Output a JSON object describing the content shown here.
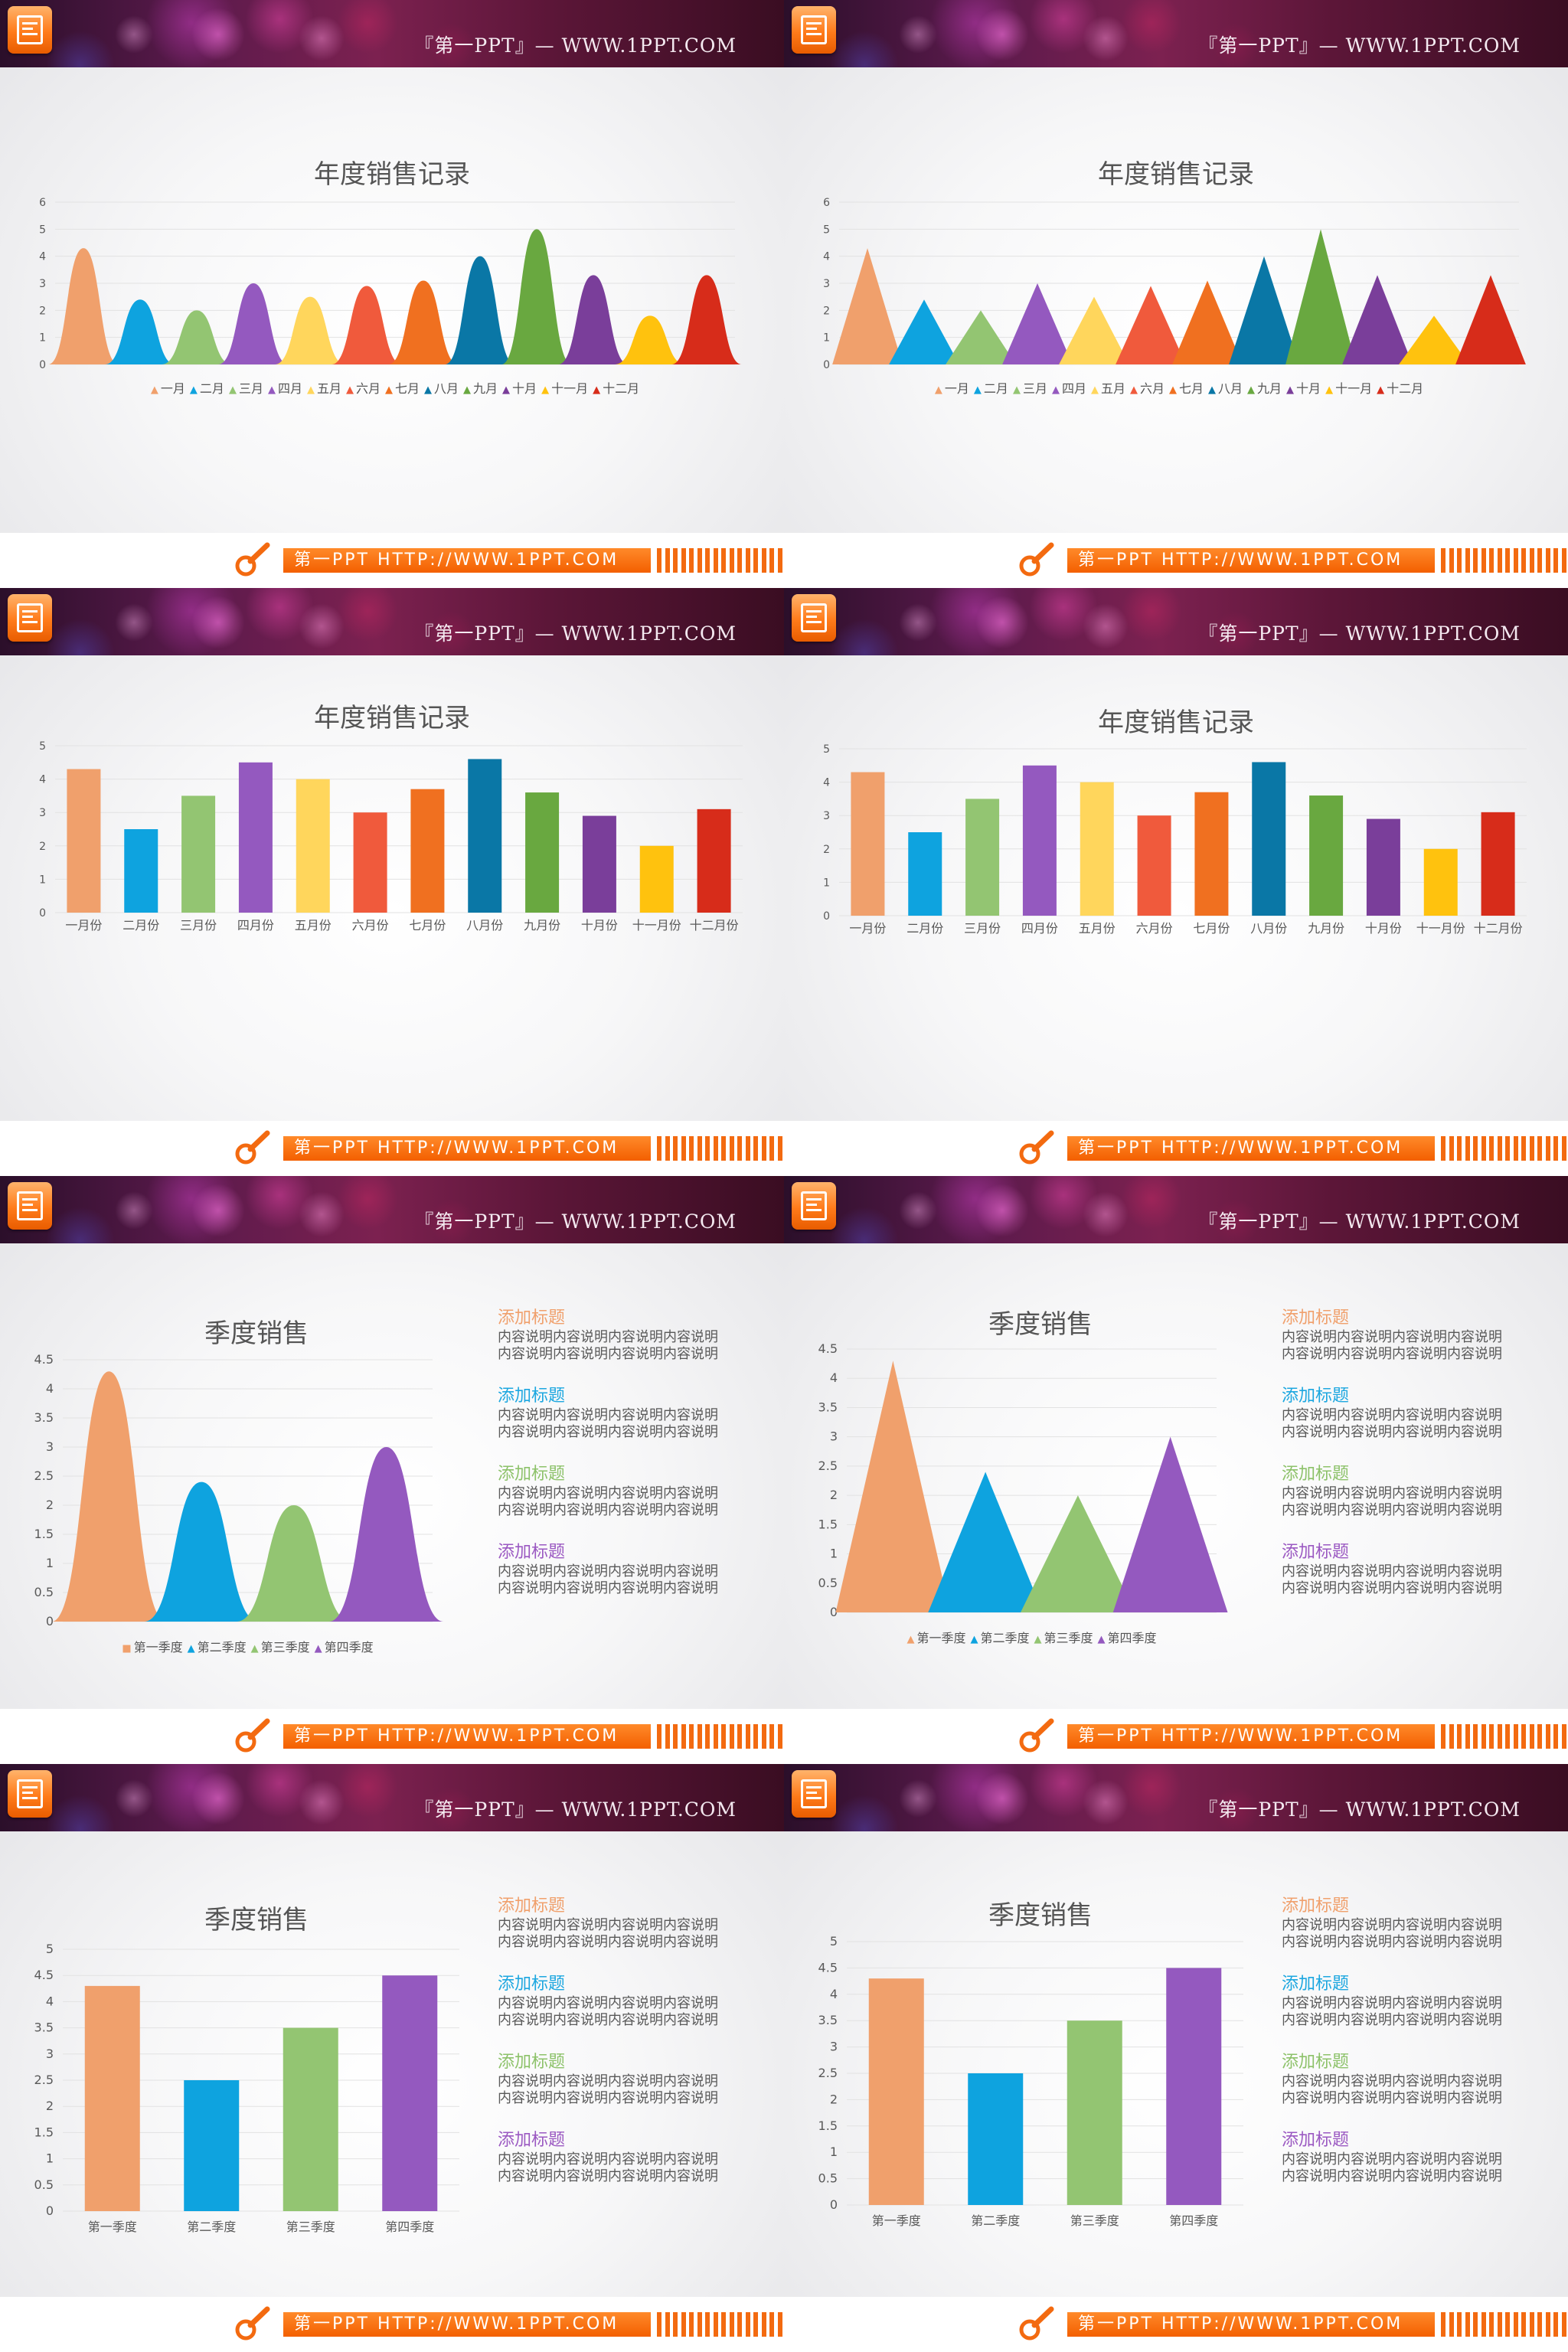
{
  "header": {
    "site_text": "『第一PPT』— WWW.1PPT.COM"
  },
  "footer": {
    "bar_text": "第一PPT HTTP://WWW.1PPT.COM"
  },
  "colors": {
    "orange_light": "#F0A06C",
    "blue": "#0EA3DF",
    "green": "#93C572",
    "purple": "#9459BF",
    "yellow": "#FFD65C",
    "red": "#F05A3C",
    "orange": "#F07020",
    "teal": "#0A77A6",
    "dark_green": "#69A840",
    "dark_purple": "#7A3E9A",
    "gold": "#FFC20E",
    "dark_red": "#D72C1A",
    "side_orange": "#F0A06C",
    "side_blue": "#1DA7E0",
    "side_green": "#8DC26A",
    "side_purple": "#9B59C2"
  },
  "side_text": {
    "items": [
      {
        "title": "添加标题",
        "line1": "内容说明内容说明内容说明内容说明",
        "line2": "内容说明内容说明内容说明内容说明",
        "color": "#F0A06C"
      },
      {
        "title": "添加标题",
        "line1": "内容说明内容说明内容说明内容说明",
        "line2": "内容说明内容说明内容说明内容说明",
        "color": "#1DA7E0"
      },
      {
        "title": "添加标题",
        "line1": "内容说明内容说明内容说明内容说明",
        "line2": "内容说明内容说明内容说明内容说明",
        "color": "#8DC26A"
      },
      {
        "title": "添加标题",
        "line1": "内容说明内容说明内容说明内容说明",
        "line2": "内容说明内容说明内容说明内容说明",
        "color": "#9B59C2"
      }
    ]
  },
  "chart_data": [
    {
      "type": "area",
      "shape": "bell",
      "title": "年度销售记录",
      "categories": [
        "一月",
        "二月",
        "三月",
        "四月",
        "五月",
        "六月",
        "七月",
        "八月",
        "九月",
        "十月",
        "十一月",
        "十二月"
      ],
      "values": [
        4.3,
        2.4,
        2.0,
        3.0,
        2.5,
        2.9,
        3.1,
        4.0,
        5.0,
        3.3,
        1.8,
        3.3
      ],
      "ylim": [
        0,
        6
      ],
      "yticks": [
        "0",
        "1",
        "2",
        "3",
        "4",
        "5",
        "6"
      ],
      "legend": "bottom",
      "grid": true
    },
    {
      "type": "area",
      "shape": "triangle",
      "title": "年度销售记录",
      "categories": [
        "一月",
        "二月",
        "三月",
        "四月",
        "五月",
        "六月",
        "七月",
        "八月",
        "九月",
        "十月",
        "十一月",
        "十二月"
      ],
      "values": [
        4.3,
        2.4,
        2.0,
        3.0,
        2.5,
        2.9,
        3.1,
        4.0,
        5.0,
        3.3,
        1.8,
        3.3
      ],
      "ylim": [
        0,
        6
      ],
      "yticks": [
        "0",
        "1",
        "2",
        "3",
        "4",
        "5",
        "6"
      ],
      "legend": "bottom",
      "grid": true
    },
    {
      "type": "bar",
      "title": "年度销售记录",
      "categories": [
        "一月份",
        "二月份",
        "三月份",
        "四月份",
        "五月份",
        "六月份",
        "七月份",
        "八月份",
        "九月份",
        "十月份",
        "十一月份",
        "十二月份"
      ],
      "values": [
        4.3,
        2.5,
        3.5,
        4.5,
        4.0,
        3.0,
        3.7,
        4.6,
        3.6,
        2.9,
        2.0,
        3.1
      ],
      "ylim": [
        0,
        5
      ],
      "yticks": [
        "0",
        "1",
        "2",
        "3",
        "4",
        "5"
      ],
      "grid": true
    },
    {
      "type": "bar",
      "title": "年度销售记录",
      "categories": [
        "一月份",
        "二月份",
        "三月份",
        "四月份",
        "五月份",
        "六月份",
        "七月份",
        "八月份",
        "九月份",
        "十月份",
        "十一月份",
        "十二月份"
      ],
      "values": [
        4.3,
        2.5,
        3.5,
        4.5,
        4.0,
        3.0,
        3.7,
        4.6,
        3.6,
        2.9,
        2.0,
        3.1
      ],
      "ylim": [
        0,
        5
      ],
      "yticks": [
        "0",
        "1",
        "2",
        "3",
        "4",
        "5"
      ],
      "grid": true
    },
    {
      "type": "area",
      "shape": "bell",
      "title": "季度销售",
      "categories": [
        "第一季度",
        "第二季度",
        "第三季度",
        "第四季度"
      ],
      "values": [
        4.3,
        2.4,
        2.0,
        3.0
      ],
      "ylim": [
        0,
        4.5
      ],
      "yticks": [
        "0",
        "0.5",
        "1",
        "1.5",
        "2",
        "2.5",
        "3",
        "3.5",
        "4",
        "4.5"
      ],
      "legend": "bottom",
      "grid": true
    },
    {
      "type": "area",
      "shape": "triangle",
      "title": "季度销售",
      "categories": [
        "第一季度",
        "第二季度",
        "第三季度",
        "第四季度"
      ],
      "values": [
        4.3,
        2.4,
        2.0,
        3.0
      ],
      "ylim": [
        0,
        4.5
      ],
      "yticks": [
        "0",
        "0.5",
        "1",
        "1.5",
        "2",
        "2.5",
        "3",
        "3.5",
        "4",
        "4.5"
      ],
      "legend": "bottom",
      "grid": true
    },
    {
      "type": "bar",
      "title": "季度销售",
      "categories": [
        "第一季度",
        "第二季度",
        "第三季度",
        "第四季度"
      ],
      "values": [
        4.3,
        2.5,
        3.5,
        4.5
      ],
      "ylim": [
        0,
        5
      ],
      "yticks": [
        "0",
        "0.5",
        "1",
        "1.5",
        "2",
        "2.5",
        "3",
        "3.5",
        "4",
        "4.5",
        "5"
      ],
      "grid": true
    },
    {
      "type": "bar",
      "title": "季度销售",
      "categories": [
        "第一季度",
        "第二季度",
        "第三季度",
        "第四季度"
      ],
      "values": [
        4.3,
        2.5,
        3.5,
        4.5
      ],
      "ylim": [
        0,
        5
      ],
      "yticks": [
        "0",
        "0.5",
        "1",
        "1.5",
        "2",
        "2.5",
        "3",
        "3.5",
        "4",
        "4.5",
        "5"
      ],
      "grid": true
    }
  ]
}
